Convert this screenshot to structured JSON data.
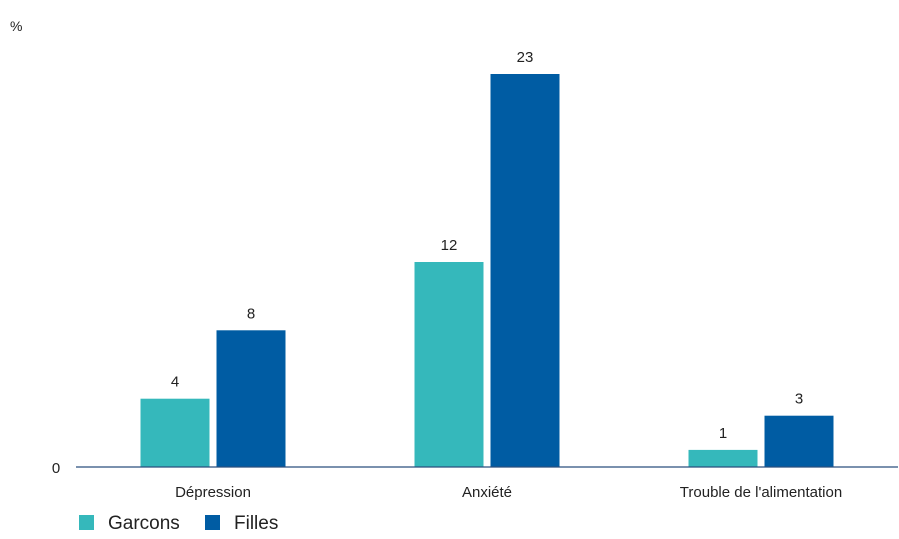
{
  "chart_data": {
    "type": "bar",
    "title": "",
    "xlabel": "",
    "ylabel": "%",
    "categories": [
      "Dépression",
      "Anxiété",
      "Trouble de l'alimentation"
    ],
    "series": [
      {
        "name": "Garcons",
        "values": [
          4,
          12,
          1
        ],
        "color": "#35b8bb"
      },
      {
        "name": "Filles",
        "values": [
          8,
          23,
          3
        ],
        "color": "#005ca3"
      }
    ],
    "ylim": [
      0,
      25
    ],
    "y_ticks": [
      "0"
    ],
    "grid": false,
    "legend_position": "bottom-left",
    "data_labels": true
  }
}
